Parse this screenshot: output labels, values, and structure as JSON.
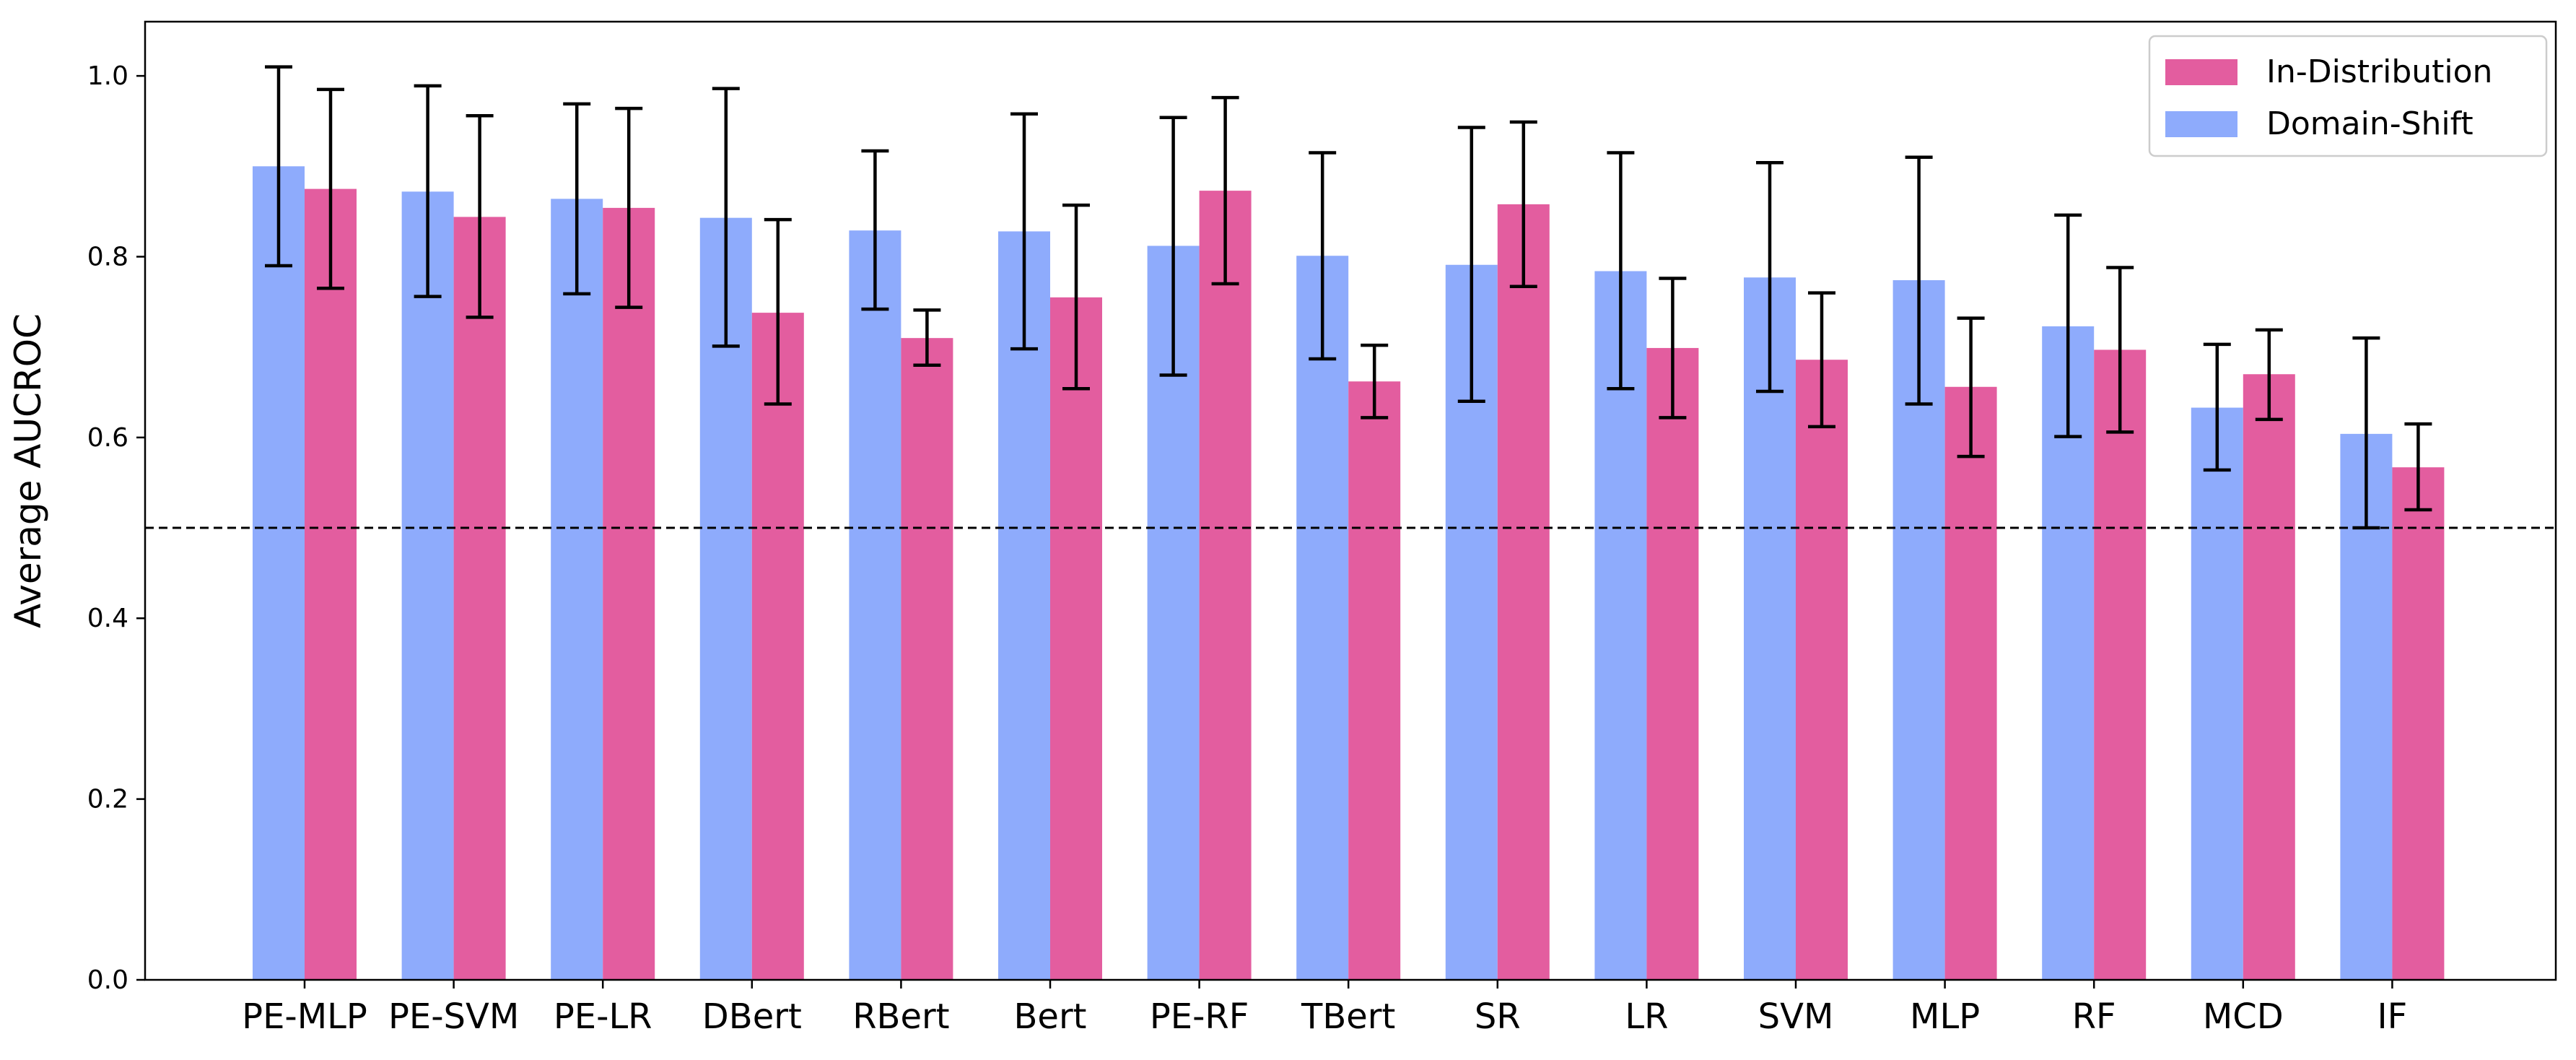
{
  "chart_data": {
    "type": "bar",
    "title": "",
    "xlabel": "",
    "ylabel": "Average AUCROC",
    "ylim": [
      0,
      1.06
    ],
    "yticks": [
      "0.0",
      "0.2",
      "0.4",
      "0.6",
      "0.8",
      "1.0"
    ],
    "grid": false,
    "legend_position": "top-right",
    "reference_line": {
      "y": 0.5,
      "style": "dashed",
      "color": "#000000"
    },
    "categories": [
      "PE-MLP",
      "PE-SVM",
      "PE-LR",
      "DBert",
      "RBert",
      "Bert",
      "PE-RF",
      "TBert",
      "SR",
      "LR",
      "SVM",
      "MLP",
      "RF",
      "MCD",
      "IF"
    ],
    "series": [
      {
        "name": "Domain-Shift",
        "color": "#8eabfc",
        "values": [
          0.9,
          0.872,
          0.864,
          0.843,
          0.829,
          0.828,
          0.812,
          0.801,
          0.791,
          0.784,
          0.777,
          0.774,
          0.723,
          0.633,
          0.604
        ],
        "err_low": [
          0.79,
          0.756,
          0.759,
          0.701,
          0.742,
          0.698,
          0.669,
          0.687,
          0.64,
          0.654,
          0.651,
          0.637,
          0.601,
          0.564,
          0.5
        ],
        "err_high": [
          1.01,
          0.989,
          0.969,
          0.986,
          0.917,
          0.958,
          0.954,
          0.915,
          0.943,
          0.915,
          0.904,
          0.91,
          0.846,
          0.703,
          0.71
        ]
      },
      {
        "name": "In-Distribution",
        "color": "#e35d9f",
        "values": [
          0.875,
          0.844,
          0.854,
          0.738,
          0.71,
          0.755,
          0.873,
          0.662,
          0.858,
          0.699,
          0.686,
          0.656,
          0.697,
          0.67,
          0.567
        ],
        "err_low": [
          0.765,
          0.733,
          0.744,
          0.637,
          0.68,
          0.654,
          0.77,
          0.622,
          0.767,
          0.622,
          0.612,
          0.579,
          0.606,
          0.62,
          0.52
        ],
        "err_high": [
          0.985,
          0.956,
          0.964,
          0.841,
          0.741,
          0.857,
          0.976,
          0.702,
          0.949,
          0.776,
          0.76,
          0.732,
          0.788,
          0.719,
          0.615
        ]
      }
    ],
    "legend": [
      "In-Distribution",
      "Domain-Shift"
    ]
  }
}
